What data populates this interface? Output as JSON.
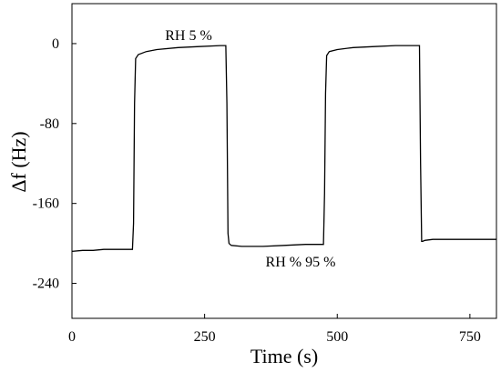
{
  "chart_data": {
    "type": "line",
    "xlabel": "Time (s)",
    "ylabel": "Δf (Hz)",
    "xlim": [
      0,
      800
    ],
    "ylim": [
      -275,
      40
    ],
    "x_ticks": [
      0,
      250,
      500,
      750
    ],
    "y_ticks": [
      0,
      -80,
      -160,
      -240
    ],
    "grid": false,
    "line_color": "#000000",
    "series": [
      {
        "x": [
          0,
          20,
          40,
          60,
          80,
          100,
          114,
          116,
          118,
          120,
          125,
          140,
          160,
          200,
          240,
          280,
          290,
          292,
          294,
          296,
          300,
          320,
          360,
          400,
          440,
          470,
          474,
          476,
          478,
          480,
          485,
          500,
          530,
          570,
          610,
          650,
          655,
          657,
          659,
          661,
          665,
          680,
          720,
          760,
          800
        ],
        "values": [
          -208,
          -207,
          -207,
          -206,
          -206,
          -206,
          -206,
          -180,
          -60,
          -15,
          -11,
          -8,
          -6,
          -4,
          -3,
          -2,
          -2,
          -60,
          -190,
          -200,
          -202,
          -203,
          -203,
          -202,
          -201,
          -201,
          -201,
          -150,
          -50,
          -12,
          -8,
          -6,
          -4,
          -3,
          -2,
          -2,
          -2,
          -120,
          -198,
          -198,
          -197,
          -196,
          -196,
          -196,
          -196
        ]
      }
    ],
    "annotations": [
      {
        "text": "RH 5 %",
        "x": 230,
        "y": 7
      },
      {
        "text": "RH % 95 %",
        "x": 335,
        "y": -222
      }
    ]
  }
}
